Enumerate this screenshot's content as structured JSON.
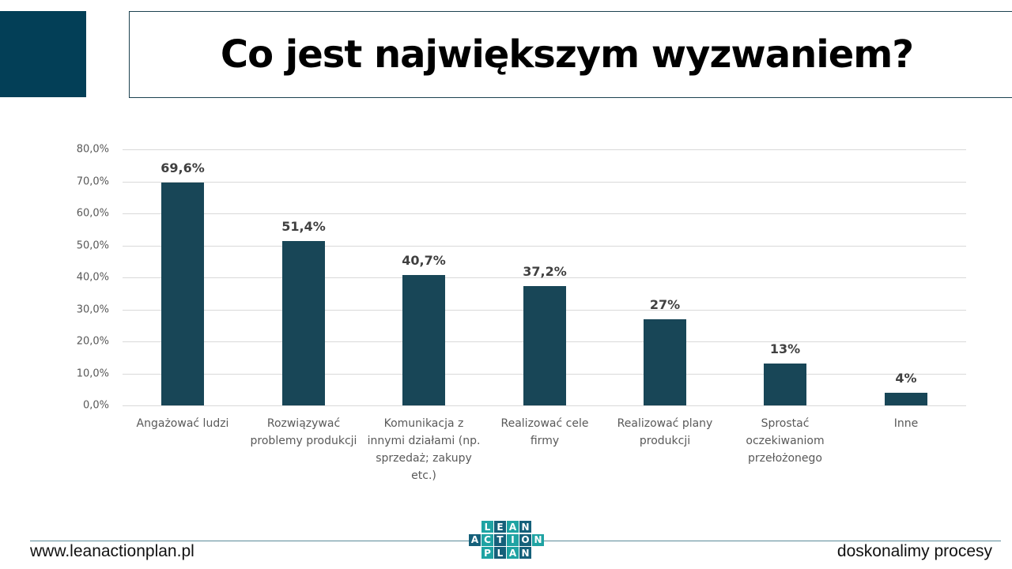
{
  "header": {
    "title": "Co jest największym wyzwaniem?"
  },
  "chart_data": {
    "type": "bar",
    "title": "Co jest największym wyzwaniem?",
    "xlabel": "",
    "ylabel": "",
    "ylim": [
      0,
      80
    ],
    "grid": true,
    "legend": "none",
    "y_ticks": [
      "0,0%",
      "10,0%",
      "20,0%",
      "30,0%",
      "40,0%",
      "50,0%",
      "60,0%",
      "70,0%",
      "80,0%"
    ],
    "categories": [
      "Angażować ludzi",
      "Rozwiązywać problemy produkcji",
      "Komunikacja z innymi działami (np. sprzedaż; zakupy etc.)",
      "Realizować cele firmy",
      "Realizować plany produkcji",
      "Sprostać oczekiwaniom przełożonego",
      "Inne"
    ],
    "category_lines": [
      [
        "Angażować ludzi"
      ],
      [
        "Rozwiązywać",
        "problemy produkcji"
      ],
      [
        "Komunikacja z",
        "innymi działami (np.",
        "sprzedaż; zakupy",
        "etc.)"
      ],
      [
        "Realizować cele",
        "firmy"
      ],
      [
        "Realizować plany",
        "produkcji"
      ],
      [
        "Sprostać",
        "oczekiwaniom",
        "przełożonego"
      ],
      [
        "Inne"
      ]
    ],
    "values": [
      69.6,
      51.4,
      40.7,
      37.2,
      27,
      13,
      4
    ],
    "data_labels": [
      "69,6%",
      "51,4%",
      "40,7%",
      "37,2%",
      "27%",
      "13%",
      "4%"
    ],
    "bar_color": "#184657"
  },
  "footer": {
    "website": "www.leanactionplan.pl",
    "tagline": "doskonalimy procesy",
    "logo": {
      "rows": [
        [
          "L",
          "E",
          "A",
          "N"
        ],
        [
          "A",
          "C",
          "T",
          "I",
          "O",
          "N"
        ],
        [
          "P",
          "L",
          "A",
          "N"
        ]
      ]
    }
  },
  "colors": {
    "accent": "#033f57",
    "bar": "#184657",
    "logo_teal": "#1fa3a3",
    "logo_dark": "#15607a"
  }
}
